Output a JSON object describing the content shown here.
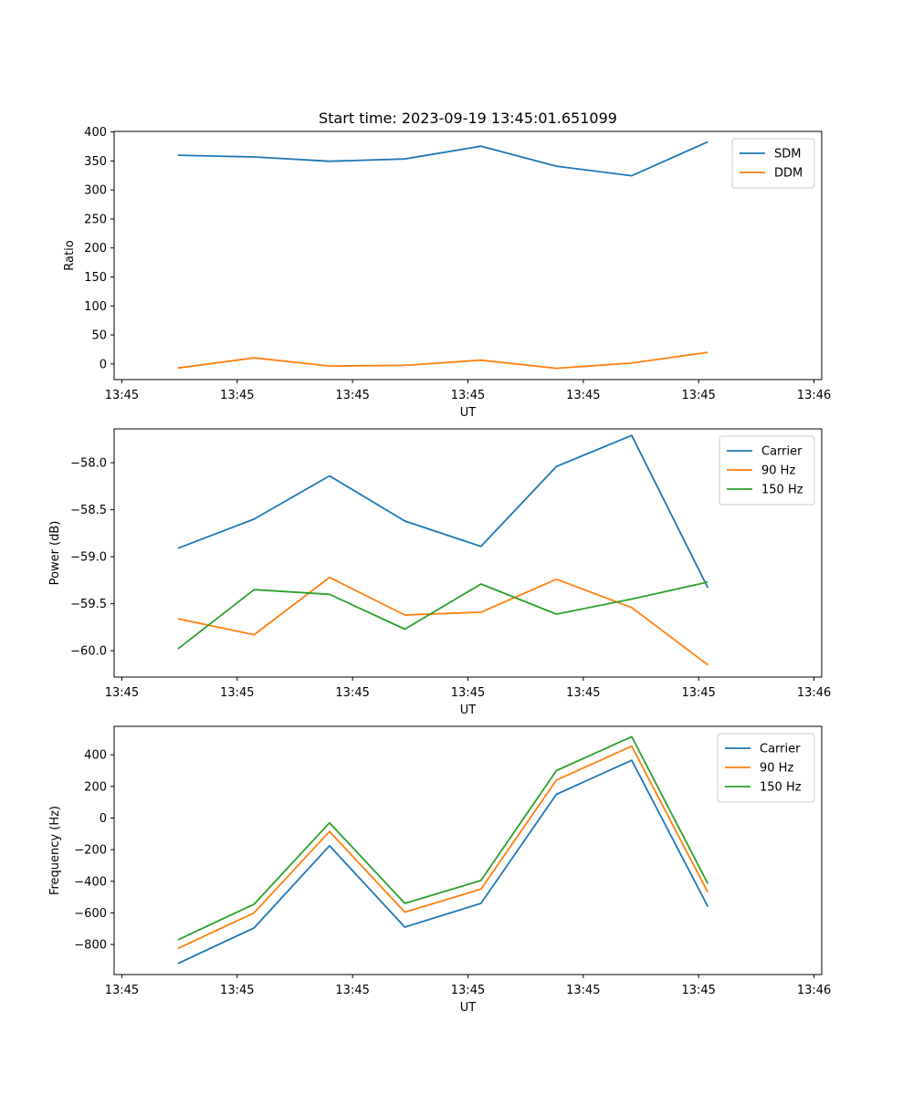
{
  "chart_data": [
    {
      "type": "line",
      "title": "Start time: 2023-09-19 13:45:01.651099",
      "xlabel": "UT",
      "ylabel": "Ratio",
      "xlim": [
        -0.1,
        9.1
      ],
      "ylim": [
        -27,
        401
      ],
      "xticks": [
        {
          "v": 0,
          "label": "13:45"
        },
        {
          "v": 1.5,
          "label": "13:45"
        },
        {
          "v": 3,
          "label": "13:45"
        },
        {
          "v": 4.5,
          "label": "13:45"
        },
        {
          "v": 6,
          "label": "13:45"
        },
        {
          "v": 7.5,
          "label": "13:45"
        },
        {
          "v": 9,
          "label": "13:46"
        }
      ],
      "yticks": [
        {
          "v": 0,
          "label": "0"
        },
        {
          "v": 50,
          "label": "50"
        },
        {
          "v": 100,
          "label": "100"
        },
        {
          "v": 150,
          "label": "150"
        },
        {
          "v": 200,
          "label": "200"
        },
        {
          "v": 250,
          "label": "250"
        },
        {
          "v": 300,
          "label": "300"
        },
        {
          "v": 350,
          "label": "350"
        },
        {
          "v": 400,
          "label": "400"
        }
      ],
      "legend_position": "top-right",
      "series": [
        {
          "name": "SDM",
          "color": "#1f77b4",
          "x": [
            0.73,
            1.72,
            2.7,
            3.68,
            4.67,
            5.65,
            6.63,
            7.62
          ],
          "y": [
            360,
            357,
            349.5,
            353.5,
            375.5,
            341,
            324.5,
            383
          ]
        },
        {
          "name": "DDM",
          "color": "#ff7f0e",
          "x": [
            0.73,
            1.72,
            2.7,
            3.68,
            4.67,
            5.65,
            6.63,
            7.62
          ],
          "y": [
            -7,
            10.5,
            -3.5,
            -2.5,
            6.5,
            -7.5,
            1.5,
            20
          ]
        }
      ]
    },
    {
      "type": "line",
      "title": "",
      "xlabel": "UT",
      "ylabel": "Power (dB)",
      "xlim": [
        -0.1,
        9.1
      ],
      "ylim": [
        -60.28,
        -57.64
      ],
      "xticks": [
        {
          "v": 0,
          "label": "13:45"
        },
        {
          "v": 1.5,
          "label": "13:45"
        },
        {
          "v": 3,
          "label": "13:45"
        },
        {
          "v": 4.5,
          "label": "13:45"
        },
        {
          "v": 6,
          "label": "13:45"
        },
        {
          "v": 7.5,
          "label": "13:45"
        },
        {
          "v": 9,
          "label": "13:46"
        }
      ],
      "yticks": [
        {
          "v": -60.0,
          "label": "−60.0"
        },
        {
          "v": -59.5,
          "label": "−59.5"
        },
        {
          "v": -59.0,
          "label": "−59.0"
        },
        {
          "v": -58.5,
          "label": "−58.5"
        },
        {
          "v": -58.0,
          "label": "−58.0"
        }
      ],
      "legend_position": "top-right",
      "series": [
        {
          "name": "Carrier",
          "color": "#1f77b4",
          "x": [
            0.73,
            1.72,
            2.7,
            3.68,
            4.67,
            5.65,
            6.63,
            7.62
          ],
          "y": [
            -58.91,
            -58.6,
            -58.14,
            -58.62,
            -58.89,
            -58.04,
            -57.71,
            -59.33
          ]
        },
        {
          "name": "90 Hz",
          "color": "#ff7f0e",
          "x": [
            0.73,
            1.72,
            2.7,
            3.68,
            4.67,
            5.65,
            6.63,
            7.62
          ],
          "y": [
            -59.66,
            -59.83,
            -59.22,
            -59.62,
            -59.59,
            -59.24,
            -59.54,
            -60.15
          ]
        },
        {
          "name": "150 Hz",
          "color": "#2ca02c",
          "x": [
            0.73,
            1.72,
            2.7,
            3.68,
            4.67,
            5.65,
            6.63,
            7.62
          ],
          "y": [
            -59.98,
            -59.35,
            -59.4,
            -59.77,
            -59.29,
            -59.61,
            -59.45,
            -59.27
          ]
        }
      ]
    },
    {
      "type": "line",
      "title": "",
      "xlabel": "UT",
      "ylabel": "Frequency (Hz)",
      "xlim": [
        -0.1,
        9.1
      ],
      "ylim": [
        -990,
        580
      ],
      "xticks": [
        {
          "v": 0,
          "label": "13:45"
        },
        {
          "v": 1.5,
          "label": "13:45"
        },
        {
          "v": 3,
          "label": "13:45"
        },
        {
          "v": 4.5,
          "label": "13:45"
        },
        {
          "v": 6,
          "label": "13:45"
        },
        {
          "v": 7.5,
          "label": "13:45"
        },
        {
          "v": 9,
          "label": "13:46"
        }
      ],
      "yticks": [
        {
          "v": -800,
          "label": "−800"
        },
        {
          "v": -600,
          "label": "−600"
        },
        {
          "v": -400,
          "label": "−400"
        },
        {
          "v": -200,
          "label": "−200"
        },
        {
          "v": 0,
          "label": "0"
        },
        {
          "v": 200,
          "label": "200"
        },
        {
          "v": 400,
          "label": "400"
        }
      ],
      "legend_position": "top-right",
      "series": [
        {
          "name": "Carrier",
          "color": "#1f77b4",
          "x": [
            0.73,
            1.72,
            2.7,
            3.68,
            4.67,
            5.65,
            6.63,
            7.62
          ],
          "y": [
            -920,
            -695,
            -175,
            -690,
            -540,
            150,
            365,
            -560
          ]
        },
        {
          "name": "90 Hz",
          "color": "#ff7f0e",
          "x": [
            0.73,
            1.72,
            2.7,
            3.68,
            4.67,
            5.65,
            6.63,
            7.62
          ],
          "y": [
            -825,
            -600,
            -85,
            -595,
            -450,
            240,
            455,
            -470
          ]
        },
        {
          "name": "150 Hz",
          "color": "#2ca02c",
          "x": [
            0.73,
            1.72,
            2.7,
            3.68,
            4.67,
            5.65,
            6.63,
            7.62
          ],
          "y": [
            -770,
            -545,
            -30,
            -540,
            -395,
            300,
            515,
            -415
          ]
        }
      ]
    }
  ]
}
